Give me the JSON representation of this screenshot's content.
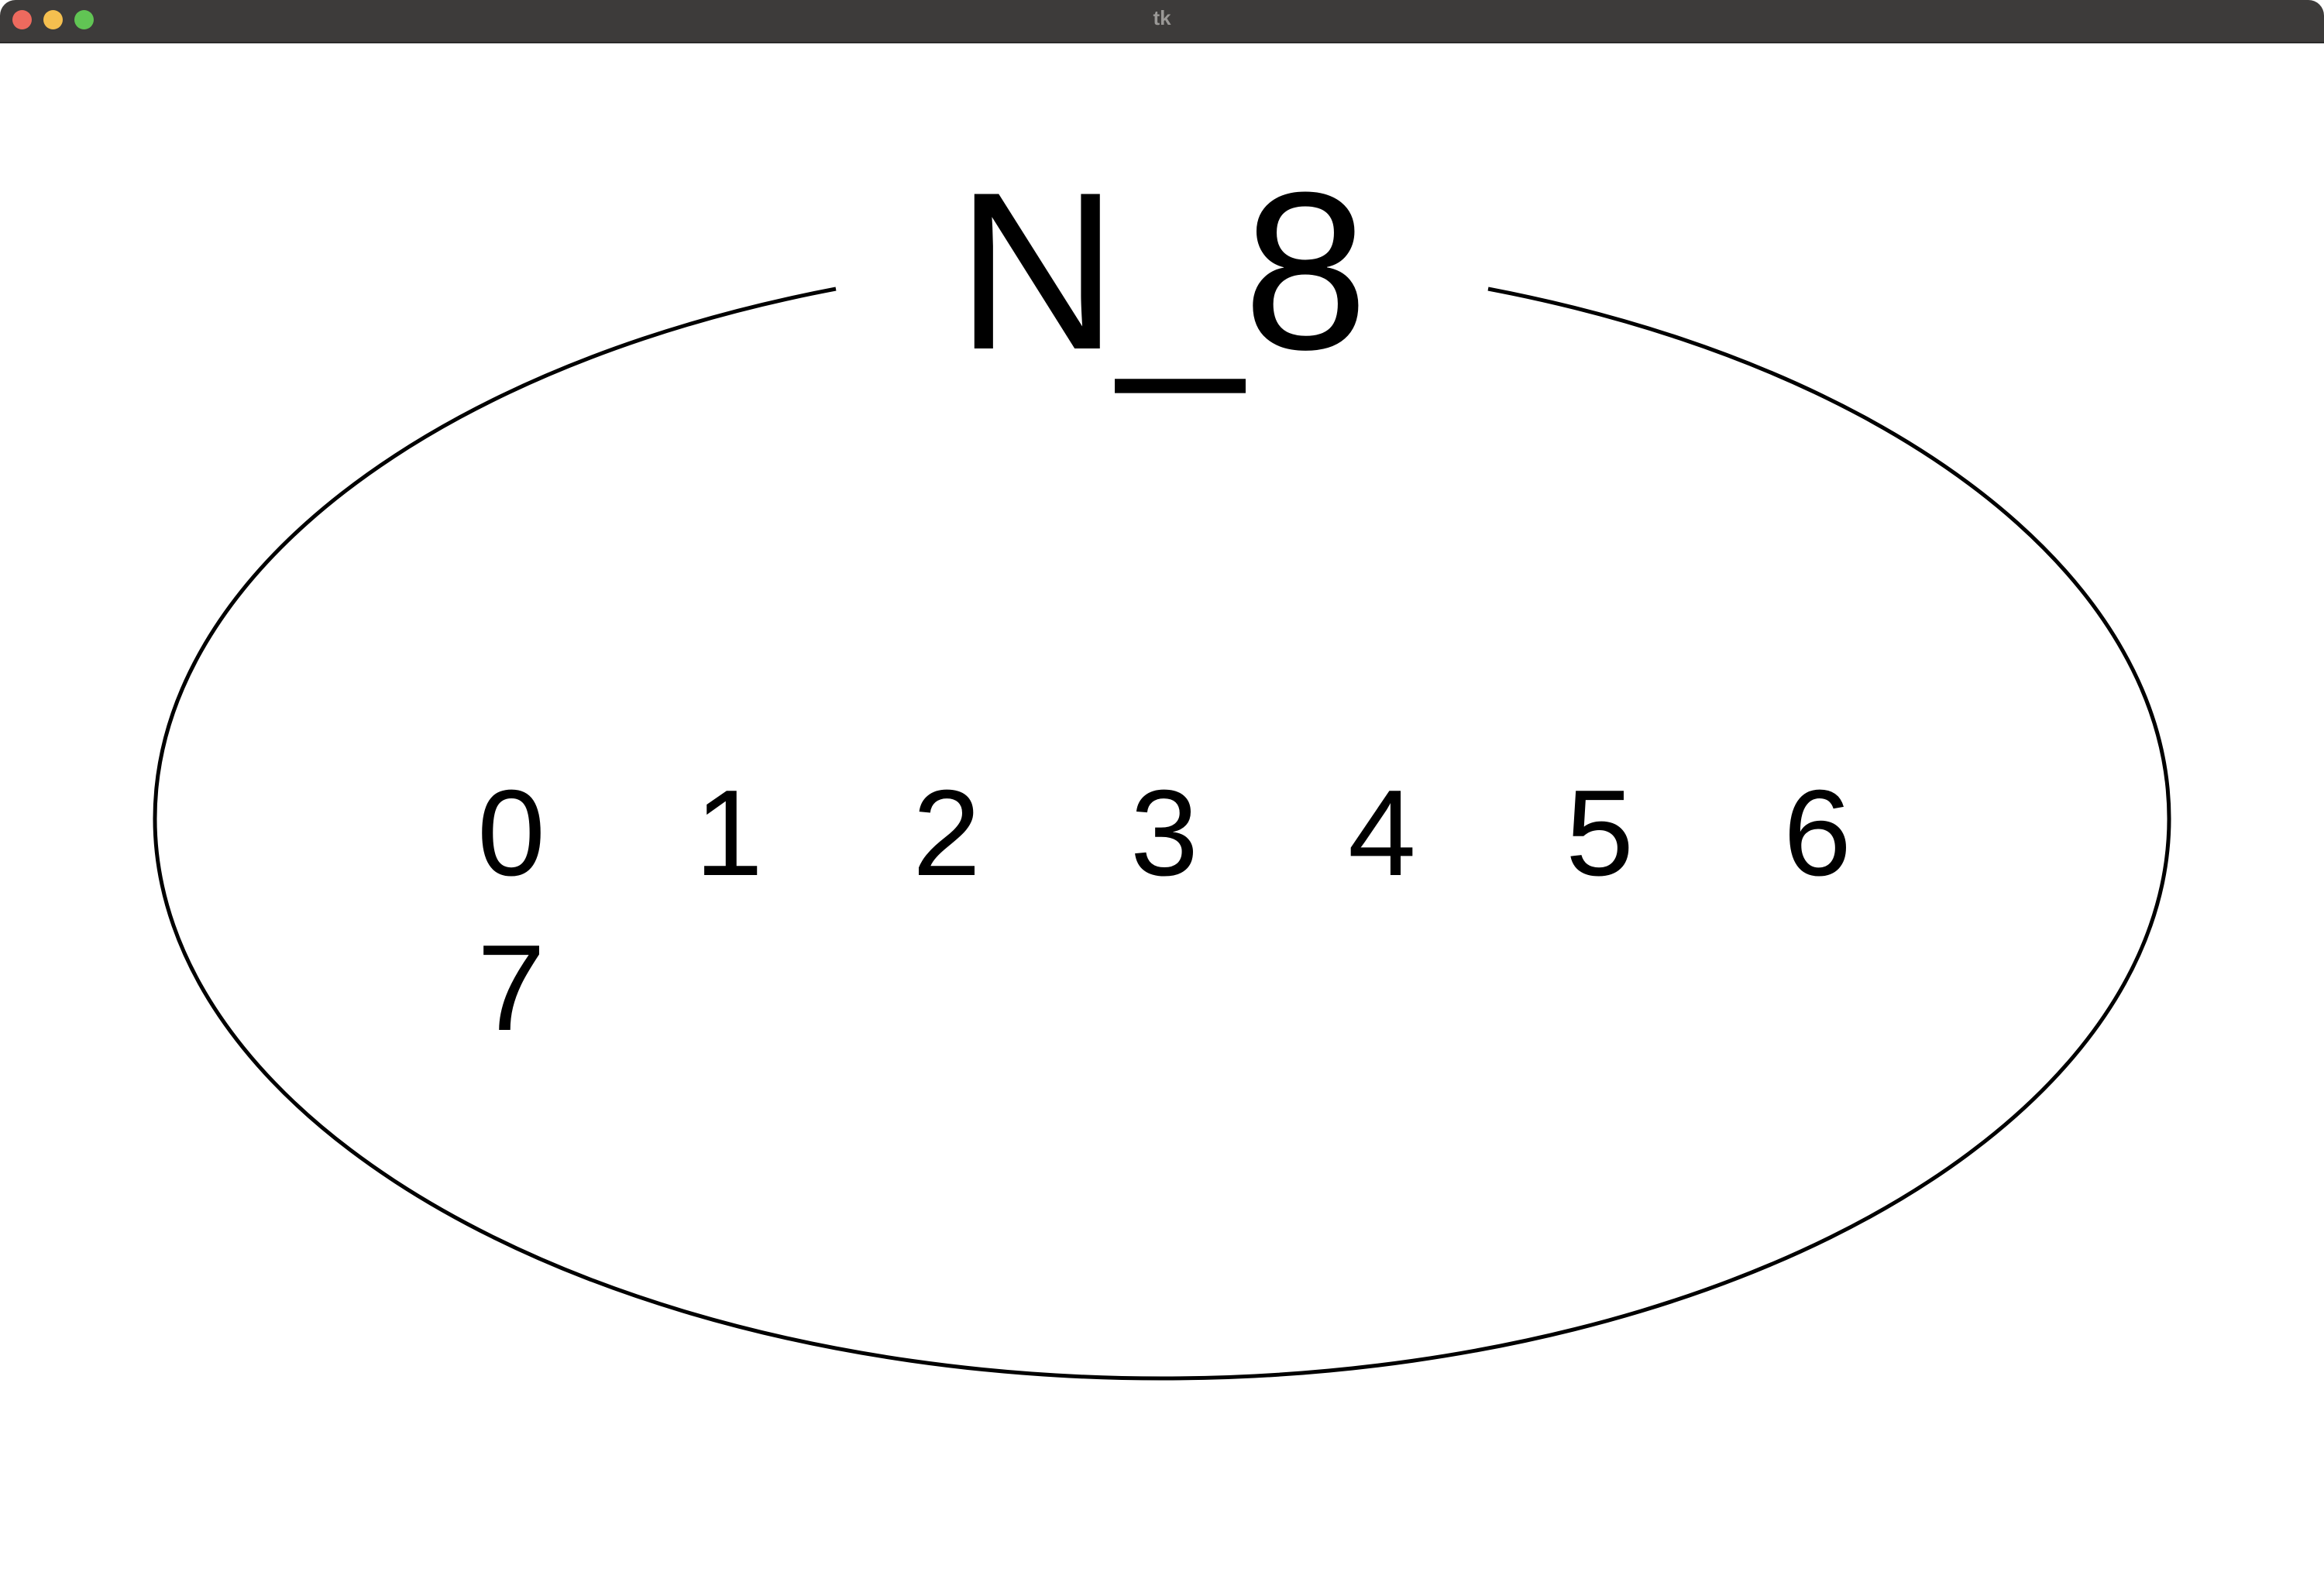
{
  "window": {
    "title": "tk",
    "controls": {
      "close": "close-button",
      "minimize": "minimize-button",
      "maximize": "maximize-button"
    }
  },
  "canvas": {
    "node_label": "N_8",
    "items": [
      "0",
      "1",
      "2",
      "3",
      "4",
      "5",
      "6",
      "7"
    ]
  },
  "colors": {
    "titlebar": "#3d3b3a",
    "close": "#ed6a5e",
    "minimize": "#f5bf4f",
    "maximize": "#61c554",
    "canvas_bg": "#ffffff",
    "stroke": "#000000"
  }
}
